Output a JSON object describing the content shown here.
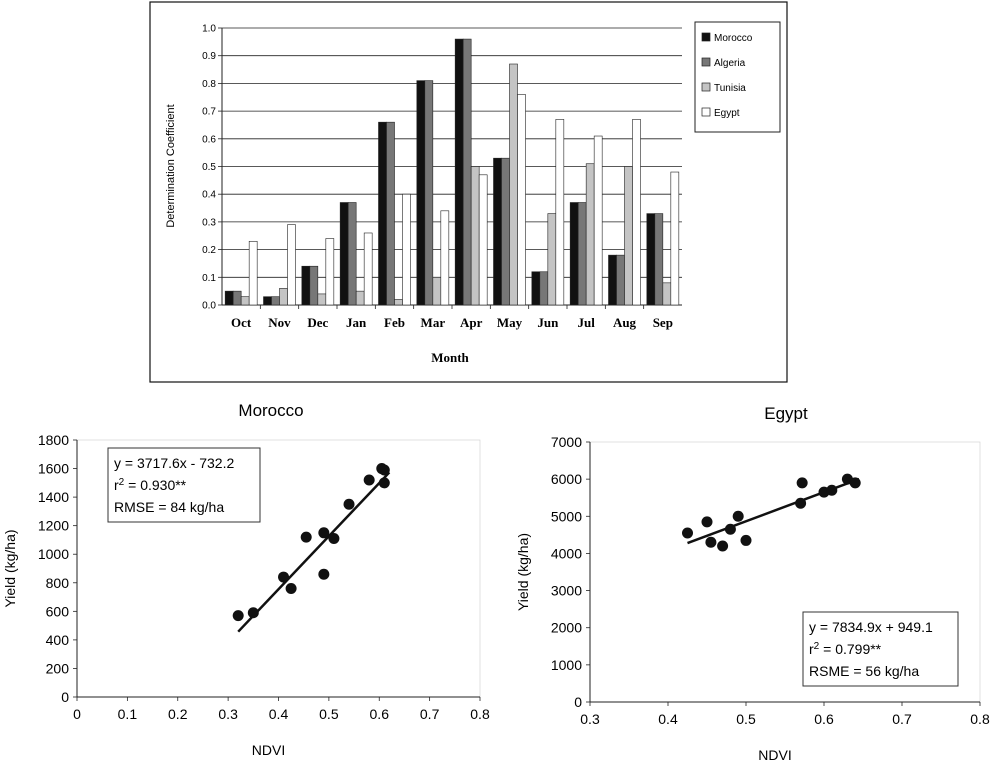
{
  "chart_data": [
    {
      "type": "bar",
      "title": "",
      "xlabel": "Month",
      "ylabel": "Determination  Coefficient",
      "ylim": [
        0,
        1.0
      ],
      "yticks": [
        "0.0",
        "0.1",
        "0.2",
        "0.3",
        "0.4",
        "0.5",
        "0.6",
        "0.7",
        "0.8",
        "0.9",
        "1.0"
      ],
      "grid": true,
      "legend_position": "right",
      "categories": [
        "Oct",
        "Nov",
        "Dec",
        "Jan",
        "Feb",
        "Mar",
        "Apr",
        "May",
        "Jun",
        "Jul",
        "Aug",
        "Sep"
      ],
      "series": [
        {
          "name": "Morocco",
          "color": "#111111",
          "values": [
            0.05,
            0.03,
            0.14,
            0.37,
            0.66,
            0.81,
            0.96,
            0.53,
            0.12,
            0.37,
            0.18,
            0.33
          ]
        },
        {
          "name": "Algeria",
          "color": "#777777",
          "values": [
            0.05,
            0.03,
            0.14,
            0.37,
            0.66,
            0.81,
            0.96,
            0.53,
            0.12,
            0.37,
            0.18,
            0.33
          ]
        },
        {
          "name": "Tunisia",
          "color": "#c4c4c4",
          "values": [
            0.03,
            0.06,
            0.04,
            0.05,
            0.02,
            0.1,
            0.5,
            0.87,
            0.33,
            0.51,
            0.5,
            0.08
          ]
        },
        {
          "name": "Egypt",
          "color": "#ffffff",
          "values": [
            0.23,
            0.29,
            0.24,
            0.26,
            0.4,
            0.34,
            0.47,
            0.76,
            0.67,
            0.61,
            0.67,
            0.48
          ]
        }
      ]
    },
    {
      "type": "scatter",
      "title": "Morocco",
      "xlabel": "NDVI",
      "ylabel": "Yield (kg/ha)",
      "xlim": [
        0,
        0.8
      ],
      "ylim": [
        0,
        1800
      ],
      "xticks": [
        "0",
        "0.1",
        "0.2",
        "0.3",
        "0.4",
        "0.5",
        "0.6",
        "0.7",
        "0.8"
      ],
      "yticks": [
        "0",
        "200",
        "400",
        "600",
        "800",
        "1000",
        "1200",
        "1400",
        "1600",
        "1800"
      ],
      "grid": false,
      "points": [
        [
          0.32,
          570
        ],
        [
          0.35,
          590
        ],
        [
          0.41,
          840
        ],
        [
          0.425,
          760
        ],
        [
          0.455,
          1120
        ],
        [
          0.49,
          860
        ],
        [
          0.49,
          1150
        ],
        [
          0.51,
          1110
        ],
        [
          0.54,
          1350
        ],
        [
          0.58,
          1520
        ],
        [
          0.605,
          1600
        ],
        [
          0.61,
          1590
        ],
        [
          0.61,
          1500
        ]
      ],
      "fit": {
        "slope": 3717.6,
        "intercept": -732.2,
        "x_range": [
          0.32,
          0.62
        ]
      },
      "annotation": {
        "equation": "y = 3717.6x - 732.2",
        "r2_prefix": "r",
        "r2_suffix": " = 0.930**",
        "error": "RMSE = 84 kg/ha"
      }
    },
    {
      "type": "scatter",
      "title": "Egypt",
      "xlabel": "NDVI",
      "ylabel": "Yield (kg/ha)",
      "xlim": [
        0.3,
        0.8
      ],
      "ylim": [
        0,
        7000
      ],
      "xticks": [
        "0.3",
        "0.4",
        "0.5",
        "0.6",
        "0.7",
        "0.8"
      ],
      "yticks": [
        "0",
        "1000",
        "2000",
        "3000",
        "4000",
        "5000",
        "6000",
        "7000"
      ],
      "grid": false,
      "points": [
        [
          0.425,
          4550
        ],
        [
          0.45,
          4850
        ],
        [
          0.455,
          4300
        ],
        [
          0.47,
          4200
        ],
        [
          0.48,
          4650
        ],
        [
          0.49,
          5000
        ],
        [
          0.5,
          4350
        ],
        [
          0.57,
          5350
        ],
        [
          0.572,
          5900
        ],
        [
          0.6,
          5650
        ],
        [
          0.61,
          5700
        ],
        [
          0.63,
          6000
        ],
        [
          0.64,
          5900
        ]
      ],
      "fit": {
        "slope": 7834.9,
        "intercept": 949.1,
        "x_range": [
          0.425,
          0.645
        ]
      },
      "annotation": {
        "equation": "y = 7834.9x + 949.1",
        "r2_prefix": "r",
        "r2_suffix": " = 0.799**",
        "error": "RSME = 56 kg/ha"
      }
    }
  ]
}
